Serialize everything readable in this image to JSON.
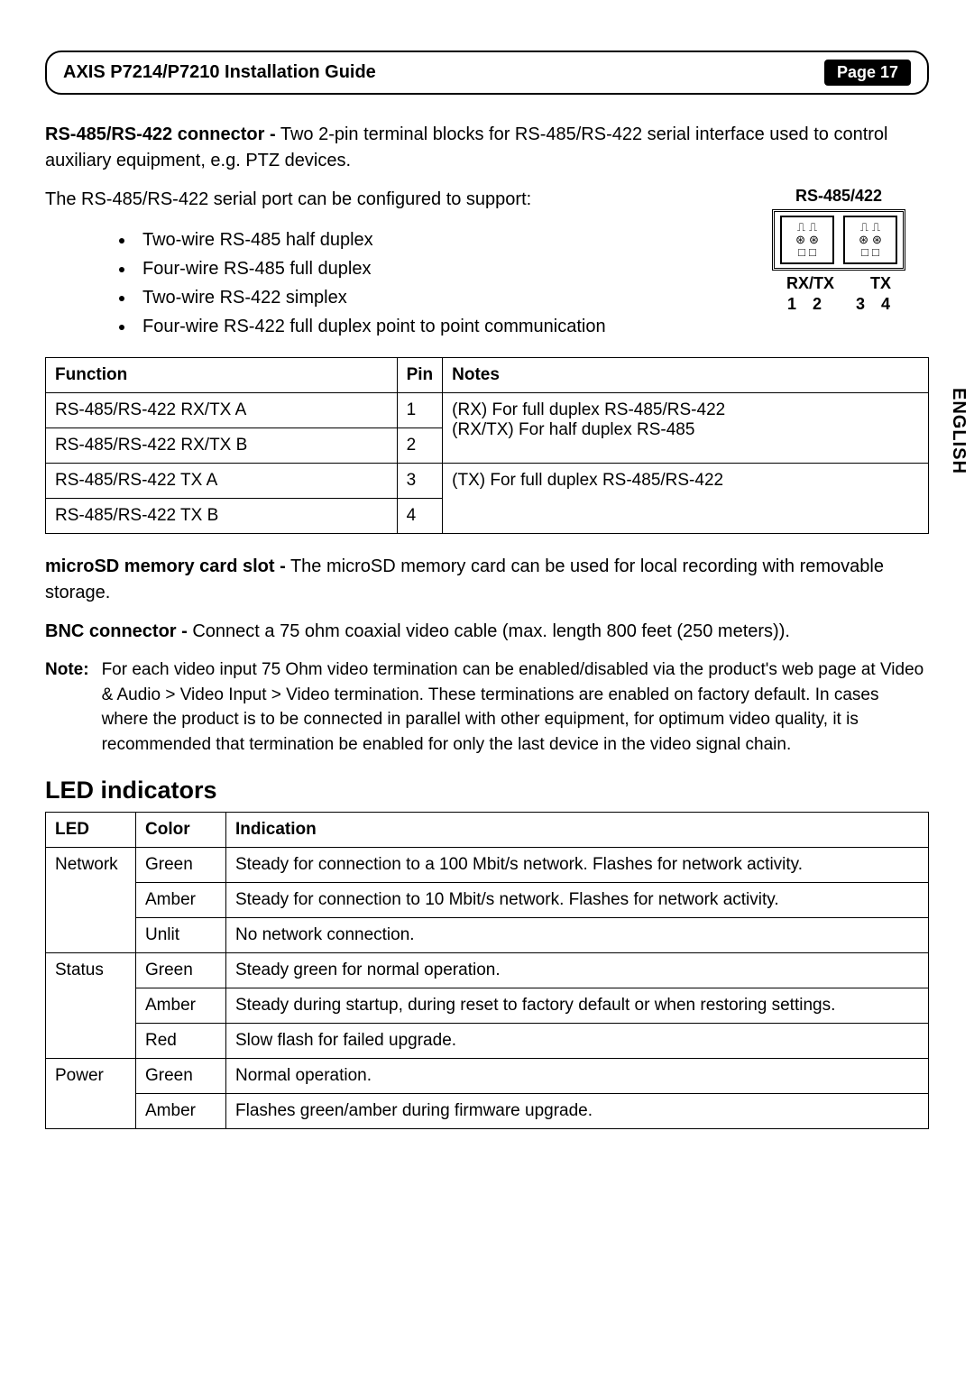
{
  "header": {
    "title": "AXIS P7214/P7210 Installation Guide",
    "page": "Page 17"
  },
  "side_language": "ENGLISH",
  "rs_section": {
    "lead_bold": "RS-485/RS-422 connector -",
    "lead_text": " Two 2-pin terminal blocks for RS-485/RS-422 serial interface used to control auxiliary equipment, e.g. PTZ devices.",
    "support_line": "The RS-485/RS-422 serial port can be configured to support:",
    "bullets": [
      "Two-wire RS-485 half duplex",
      "Four-wire RS-485 full duplex",
      "Two-wire RS-422 simplex",
      "Four-wire RS-422 full duplex point to point communication"
    ],
    "diagram": {
      "title": "RS-485/422",
      "label_left": "RX/TX",
      "label_right": "TX",
      "nums_left_a": "1",
      "nums_left_b": "2",
      "nums_right_a": "3",
      "nums_right_b": "4"
    }
  },
  "pin_table": {
    "headers": {
      "function": "Function",
      "pin": "Pin",
      "notes": "Notes"
    },
    "rows": [
      {
        "function": "RS-485/RS-422 RX/TX A",
        "pin": "1",
        "notes": "(RX) For full duplex RS-485/RS-422\n(RX/TX) For half duplex RS-485",
        "rowspan_notes": 2
      },
      {
        "function": "RS-485/RS-422 RX/TX B",
        "pin": "2",
        "notes": null
      },
      {
        "function": "RS-485/RS-422 TX A",
        "pin": "3",
        "notes": "(TX) For full duplex RS-485/RS-422",
        "rowspan_notes": 2
      },
      {
        "function": "RS-485/RS-422 TX B",
        "pin": "4",
        "notes": null
      }
    ]
  },
  "microsd": {
    "bold": "microSD memory card slot -",
    "text": " The microSD memory card can be used for local recording with removable storage."
  },
  "bnc": {
    "bold": "BNC connector -",
    "text": " Connect a 75 ohm coaxial video cable (max. length 800 feet (250 meters))."
  },
  "note": {
    "label": "Note:",
    "text": "For each video input 75 Ohm video termination can be enabled/disabled via the product's web page at Video & Audio > Video Input > Video termination. These terminations are enabled on factory default. In cases where the product is to be connected in parallel with other equipment, for optimum video quality, it is recommended that termination be enabled for only the last device in the video signal chain."
  },
  "led_section": {
    "title": "LED indicators",
    "headers": {
      "led": "LED",
      "color": "Color",
      "indication": "Indication"
    },
    "rows": [
      {
        "led": "Network",
        "led_rowspan": 3,
        "color": "Green",
        "indication": "Steady for connection to a 100 Mbit/s network. Flashes for network activity."
      },
      {
        "led": null,
        "color": "Amber",
        "indication": "Steady for connection to 10 Mbit/s network. Flashes for network activity."
      },
      {
        "led": null,
        "color": "Unlit",
        "indication": "No network connection."
      },
      {
        "led": "Status",
        "led_rowspan": 3,
        "color": "Green",
        "indication": "Steady green for normal operation."
      },
      {
        "led": null,
        "color": "Amber",
        "indication": "Steady during startup, during reset to factory default or when restoring settings."
      },
      {
        "led": null,
        "color": "Red",
        "indication": "Slow flash for failed upgrade."
      },
      {
        "led": "Power",
        "led_rowspan": 2,
        "color": "Green",
        "indication": "Normal operation."
      },
      {
        "led": null,
        "color": "Amber",
        "indication": "Flashes green/amber during firmware upgrade."
      }
    ]
  }
}
